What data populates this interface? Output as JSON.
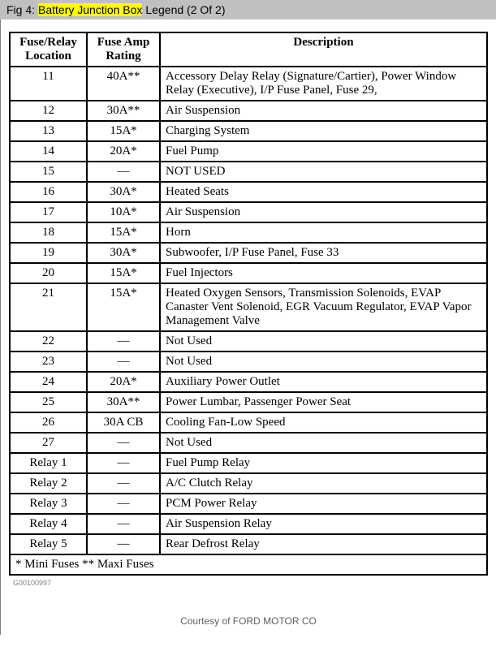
{
  "title": {
    "prefix": "Fig 4:",
    "highlighted": "Battery Junction Box",
    "suffix": "Legend (2 Of 2)"
  },
  "table": {
    "headers": {
      "location": "Fuse/Relay Location",
      "rating": "Fuse Amp Rating",
      "description": "Description"
    },
    "rows": [
      {
        "location": "11",
        "rating": "40A**",
        "description": "Accessory Delay Relay (Signature/Cartier), Power Window Relay (Executive), I/P Fuse Panel, Fuse 29,"
      },
      {
        "location": "12",
        "rating": "30A**",
        "description": "Air Suspension"
      },
      {
        "location": "13",
        "rating": "15A*",
        "description": "Charging System"
      },
      {
        "location": "14",
        "rating": "20A*",
        "description": "Fuel Pump"
      },
      {
        "location": "15",
        "rating": "—",
        "description": "NOT USED"
      },
      {
        "location": "16",
        "rating": "30A*",
        "description": "Heated Seats"
      },
      {
        "location": "17",
        "rating": "10A*",
        "description": "Air Suspension"
      },
      {
        "location": "18",
        "rating": "15A*",
        "description": "Horn"
      },
      {
        "location": "19",
        "rating": "30A*",
        "description": "Subwoofer, I/P Fuse Panel, Fuse 33"
      },
      {
        "location": "20",
        "rating": "15A*",
        "description": "Fuel Injectors"
      },
      {
        "location": "21",
        "rating": "15A*",
        "description": "Heated Oxygen Sensors, Transmission Solenoids, EVAP Canaster Vent Solenoid, EGR Vacuum Regulator, EVAP Vapor Management Valve"
      },
      {
        "location": "22",
        "rating": "—",
        "description": "Not Used"
      },
      {
        "location": "23",
        "rating": "—",
        "description": "Not Used"
      },
      {
        "location": "24",
        "rating": "20A*",
        "description": "Auxiliary Power Outlet"
      },
      {
        "location": "25",
        "rating": "30A**",
        "description": "Power Lumbar, Passenger Power Seat"
      },
      {
        "location": "26",
        "rating": "30A CB",
        "description": "Cooling Fan-Low Speed"
      },
      {
        "location": "27",
        "rating": "—",
        "description": "Not Used"
      },
      {
        "location": "Relay 1",
        "rating": "—",
        "description": "Fuel Pump Relay"
      },
      {
        "location": "Relay 2",
        "rating": "—",
        "description": "A/C Clutch Relay"
      },
      {
        "location": "Relay 3",
        "rating": "—",
        "description": "PCM Power Relay"
      },
      {
        "location": "Relay 4",
        "rating": "—",
        "description": "Air Suspension Relay"
      },
      {
        "location": "Relay 5",
        "rating": "—",
        "description": "Rear Defrost Relay"
      }
    ],
    "footnote": "* Mini Fuses ** Maxi Fuses"
  },
  "doc_id": "G00100997",
  "courtesy": "Courtesy of FORD MOTOR CO"
}
